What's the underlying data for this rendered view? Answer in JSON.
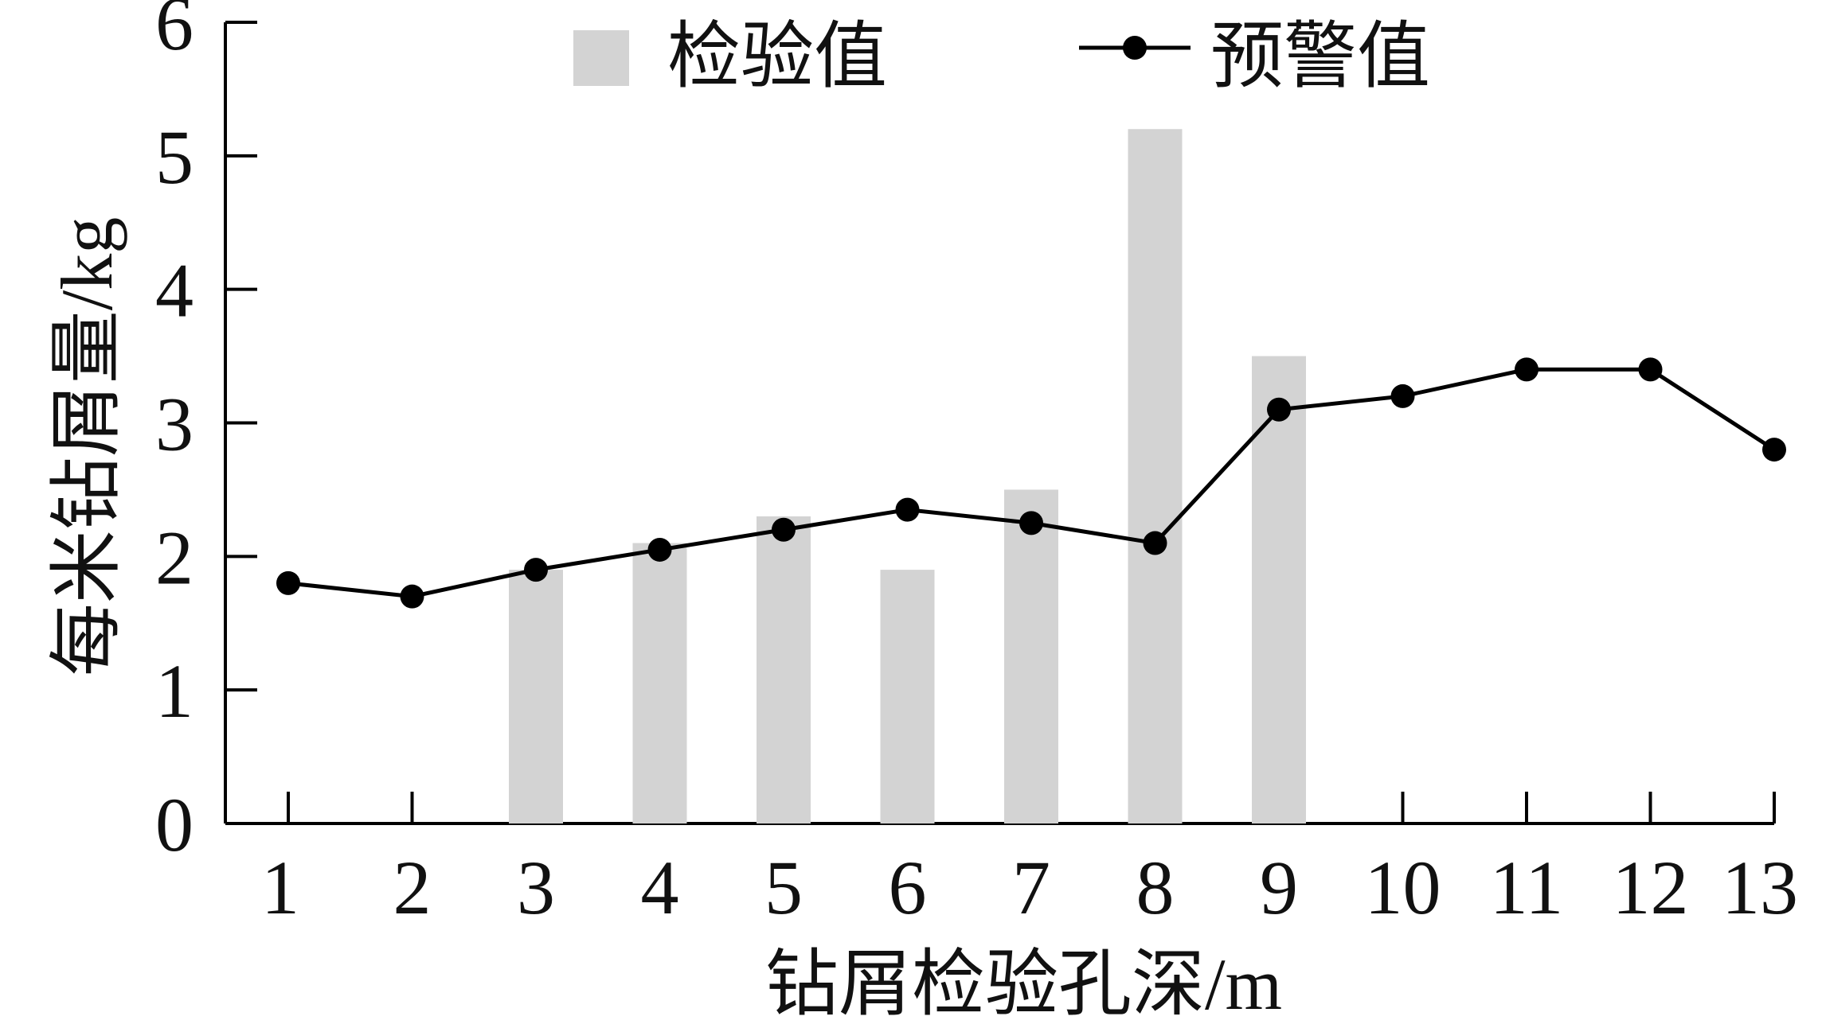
{
  "chart_data": {
    "type": "bar",
    "categories": [
      "1",
      "2",
      "3",
      "4",
      "5",
      "6",
      "7",
      "8",
      "9",
      "10",
      "11",
      "12",
      "13"
    ],
    "series": [
      {
        "name": "检验值",
        "type": "bar",
        "color": "#d3d3d3",
        "values": [
          null,
          null,
          1.9,
          2.1,
          2.3,
          1.9,
          2.5,
          5.2,
          3.5,
          null,
          null,
          null,
          null
        ]
      },
      {
        "name": "预警值",
        "type": "line",
        "color": "#000000",
        "values": [
          1.8,
          1.7,
          1.9,
          2.05,
          2.2,
          2.35,
          2.25,
          2.1,
          3.1,
          3.2,
          3.4,
          3.4,
          2.8
        ]
      }
    ],
    "xlabel": "钻屑检验孔深/m",
    "ylabel": "每米钻屑量/kg",
    "ylim": [
      0,
      6
    ],
    "yticks": [
      "0",
      "1",
      "2",
      "3",
      "4",
      "5",
      "6"
    ],
    "grid": false,
    "legend_position": "top"
  }
}
